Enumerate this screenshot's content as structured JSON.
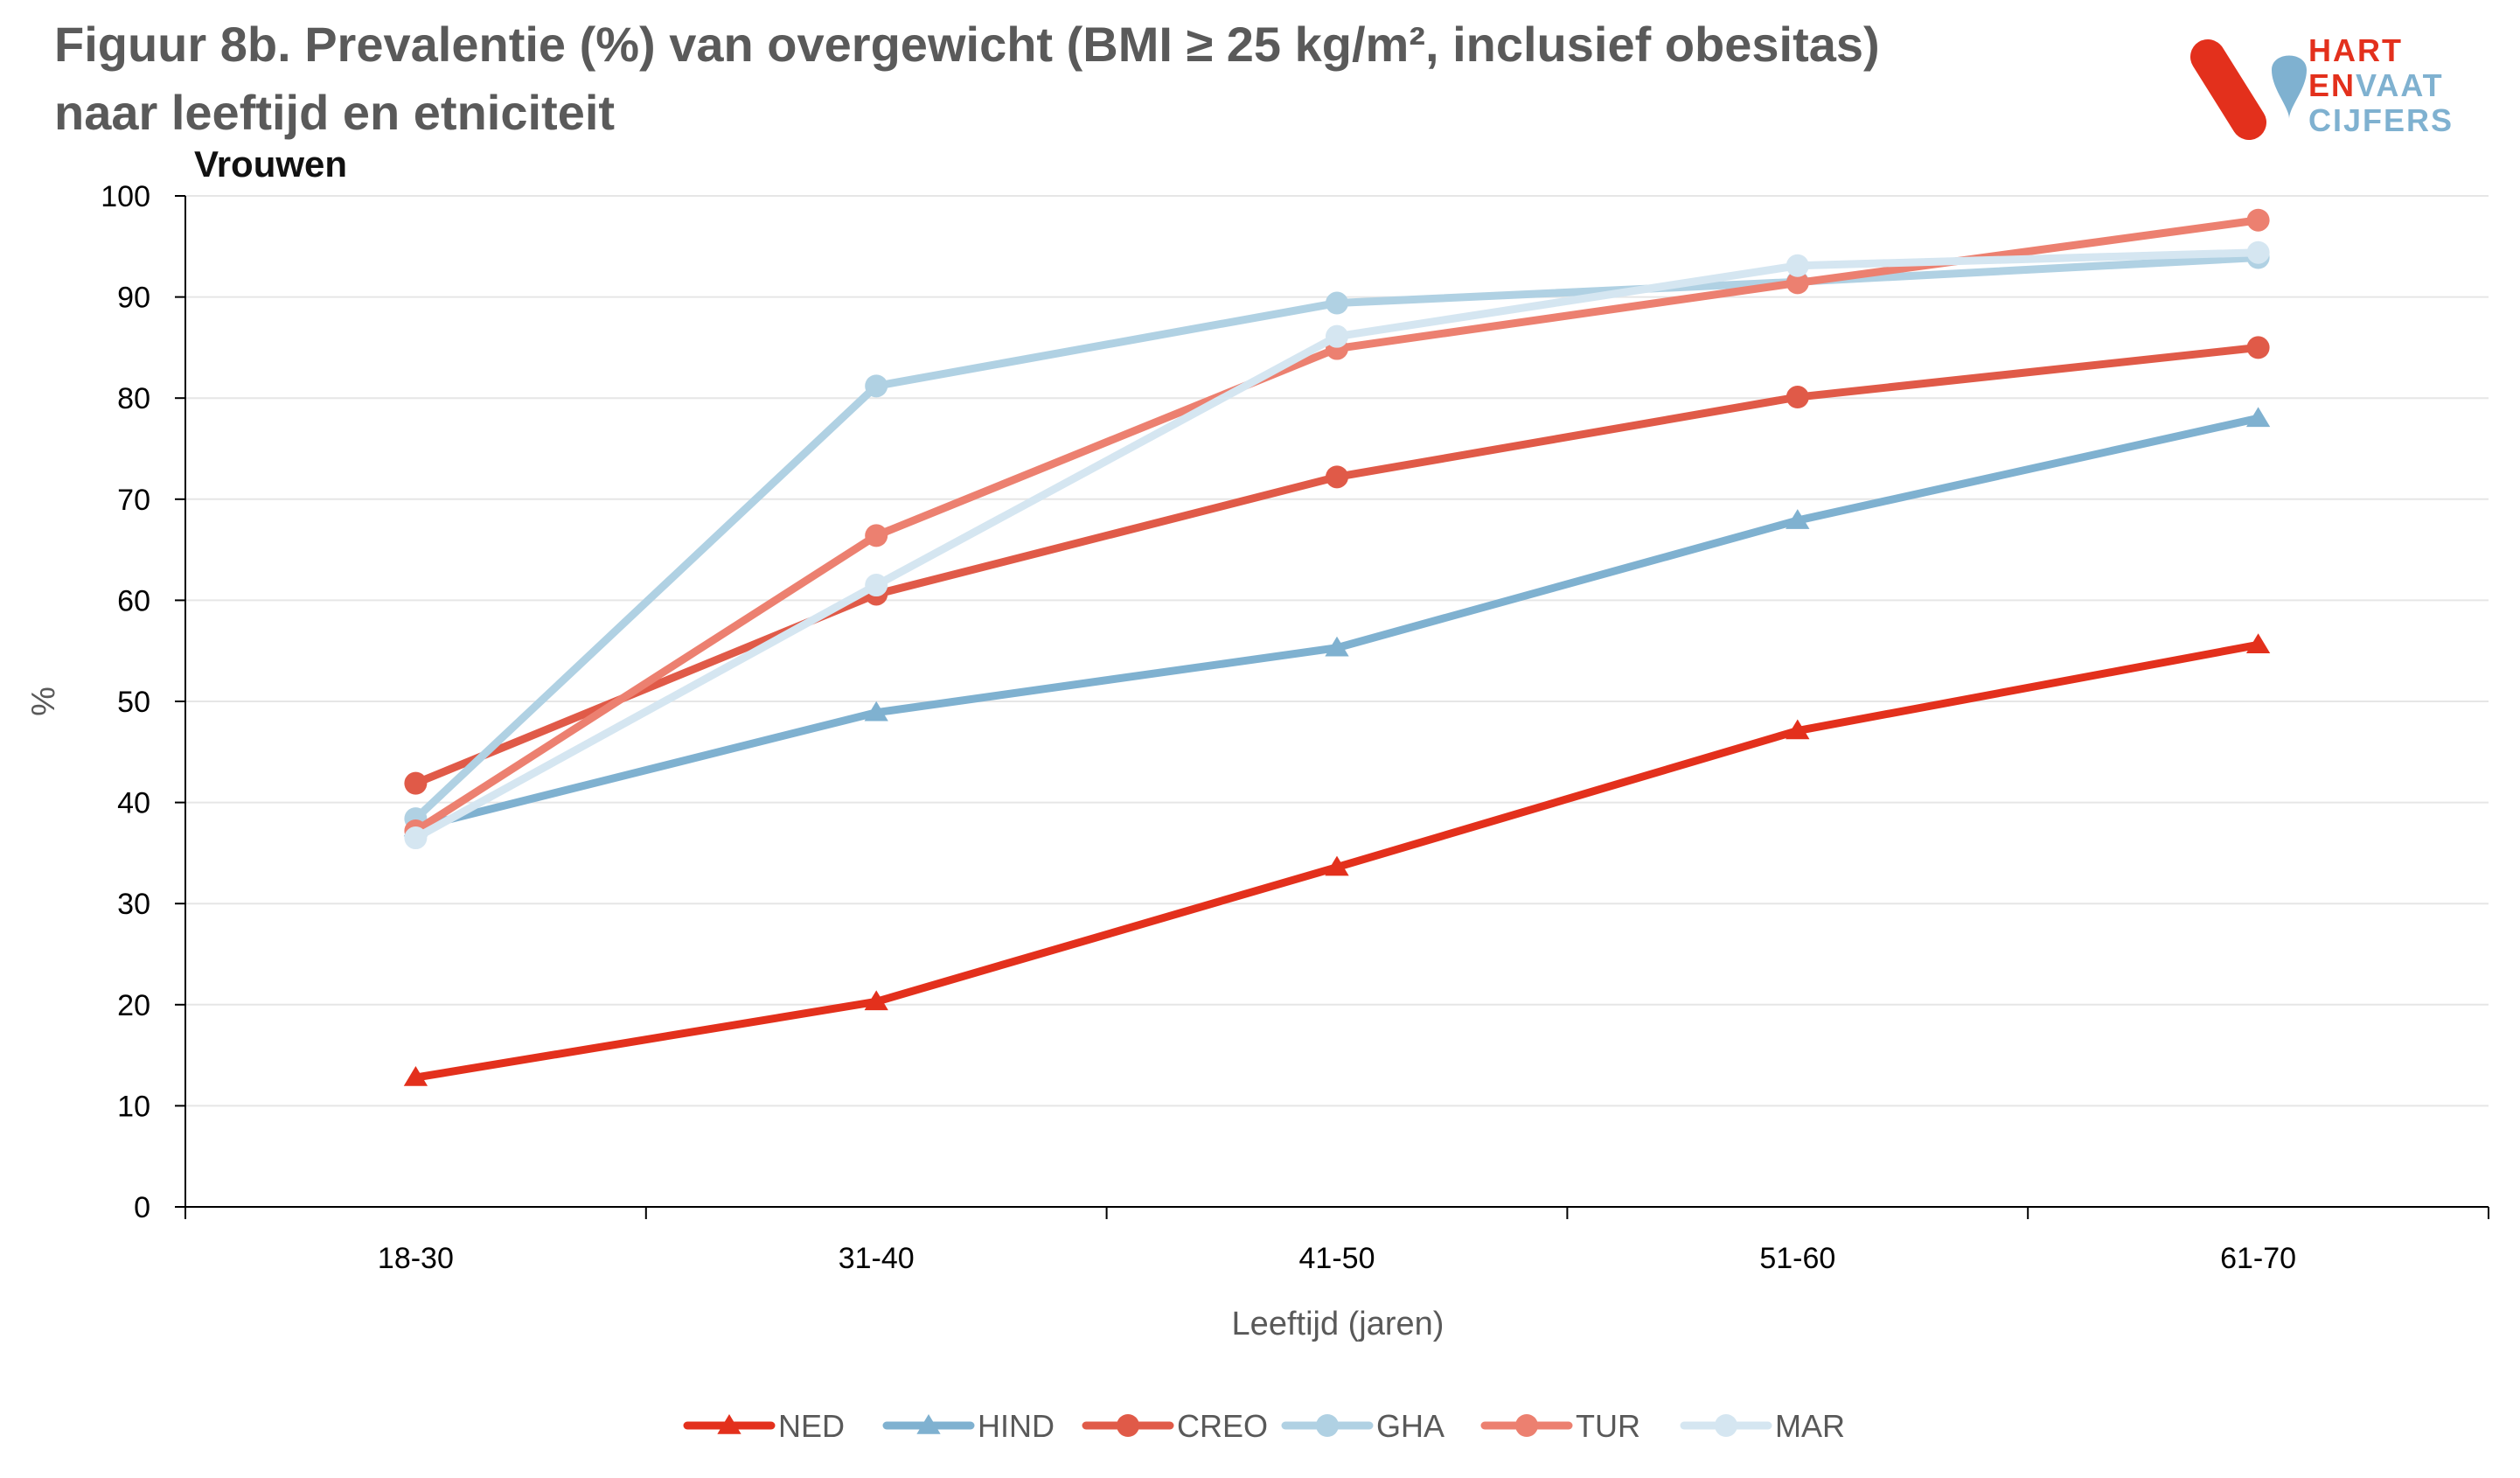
{
  "header": {
    "title_line1": "Figuur 8b. Prevalentie (%) van overgewicht (BMI ≥  25 kg/m², inclusief obesitas)",
    "title_line2": "naar leeftijd en etniciteit"
  },
  "logo": {
    "line1": "HART",
    "line2a": "EN",
    "line2b": "VAAT",
    "line3": "CIJFERS"
  },
  "chart_data": {
    "type": "line",
    "title": "Figuur 8b. Prevalentie (%) van overgewicht (BMI ≥  25 kg/m², inclusief obesitas) naar leeftijd en etniciteit",
    "subtitle": "Vrouwen",
    "xlabel": "Leeftijd (jaren)",
    "ylabel": "%",
    "ylim": [
      0,
      100
    ],
    "yticks": [
      0,
      10,
      20,
      30,
      40,
      50,
      60,
      70,
      80,
      90,
      100
    ],
    "categories": [
      "18-30",
      "31-40",
      "41-50",
      "51-60",
      "61-70"
    ],
    "grid": "horizontal",
    "legend_position": "bottom",
    "series": [
      {
        "name": "NED",
        "color": "#e3301c",
        "marker": "triangle",
        "values": [
          12.8,
          20.3,
          33.6,
          47.1,
          55.6
        ]
      },
      {
        "name": "HIND",
        "color": "#7fb1d0",
        "marker": "triangle",
        "values": [
          37.5,
          48.9,
          55.3,
          67.9,
          78.0
        ]
      },
      {
        "name": "CREO",
        "color": "#e05a48",
        "marker": "circle",
        "values": [
          41.9,
          60.6,
          72.2,
          80.1,
          85.0
        ]
      },
      {
        "name": "GHA",
        "color": "#b0d1e3",
        "marker": "circle",
        "values": [
          38.4,
          81.2,
          89.4,
          91.5,
          93.9
        ]
      },
      {
        "name": "TUR",
        "color": "#ec8070",
        "marker": "circle",
        "values": [
          37.2,
          66.4,
          84.9,
          91.4,
          97.6
        ]
      },
      {
        "name": "MAR",
        "color": "#d5e6f1",
        "marker": "circle",
        "values": [
          36.5,
          61.5,
          86.1,
          93.1,
          94.4
        ]
      }
    ]
  }
}
